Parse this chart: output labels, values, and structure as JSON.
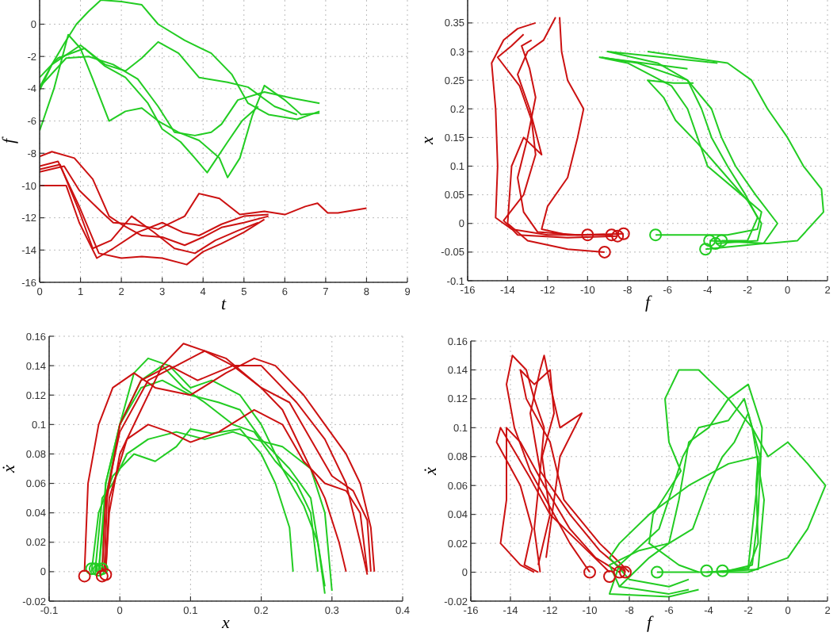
{
  "chart_data": [
    {
      "type": "line",
      "xlabel": "t",
      "ylabel": "f",
      "xlim": [
        0,
        9
      ],
      "ylim": [
        -16,
        1.5
      ],
      "xticks": [
        0,
        1,
        2,
        3,
        4,
        5,
        6,
        7,
        8,
        9
      ],
      "yticks": [
        -16,
        -14,
        -12,
        -10,
        -8,
        -6,
        -4,
        -2,
        0
      ],
      "grid": true,
      "line_style": "solid",
      "series": [
        {
          "color": "#22cc22",
          "x": [
            0,
            0.3,
            0.6,
            0.9,
            1.2,
            1.5,
            2.0,
            2.5,
            2.9,
            3.55,
            4.2,
            4.7,
            5.1,
            5.6,
            6.3,
            6.85
          ],
          "values": [
            -3.9,
            -2.5,
            -1.2,
            0,
            0.8,
            1.5,
            1.4,
            1.2,
            0,
            -1,
            -1.8,
            -3.1,
            -4.9,
            -5.6,
            -5.9,
            -5.4
          ]
        },
        {
          "color": "#22cc22",
          "x": [
            0,
            0.35,
            0.7,
            1.0,
            1.3,
            1.7,
            2.1,
            2.5,
            2.9,
            3.4,
            3.9,
            4.4,
            4.6,
            4.9,
            5.2,
            5.5,
            6.0,
            6.4,
            6.85
          ],
          "values": [
            -6.6,
            -4,
            -0.65,
            -1.5,
            -3.4,
            -6,
            -5.4,
            -5.2,
            -6,
            -6.7,
            -7.2,
            -8.3,
            -9.5,
            -8.3,
            -5.7,
            -3.8,
            -4.7,
            -5.6,
            -5.5
          ]
        },
        {
          "color": "#22cc22",
          "x": [
            0,
            0.3,
            1.0,
            1.6,
            2.1,
            2.5,
            2.9,
            3.4,
            3.9,
            4.6,
            5.1,
            5.75,
            6.3
          ],
          "values": [
            -4.1,
            -2.5,
            -1.3,
            -2.5,
            -2.9,
            -2.1,
            -1.1,
            -1.8,
            -3.3,
            -3.6,
            -3.9,
            -5.1,
            -5.6
          ]
        },
        {
          "color": "#22cc22",
          "x": [
            0,
            0.45,
            1.1,
            1.6,
            2.1,
            2.65,
            3.0,
            3.45,
            3.8,
            4.1,
            4.6,
            4.95,
            5.35
          ],
          "values": [
            -3.3,
            -2.1,
            -1.5,
            -2.6,
            -3.3,
            -4.9,
            -6.5,
            -7.3,
            -8.3,
            -9.2,
            -7.3,
            -6,
            -5.1
          ]
        },
        {
          "color": "#22cc22",
          "x": [
            0,
            0.65,
            1.2,
            1.8,
            2.4,
            2.9,
            3.3,
            3.8,
            4.2,
            4.45,
            4.85,
            5.5,
            6.2,
            6.85
          ],
          "values": [
            -3.9,
            -2.1,
            -2,
            -2.5,
            -3.4,
            -5.1,
            -6.7,
            -6.9,
            -6.7,
            -6.2,
            -4.7,
            -4.2,
            -4.6,
            -4.9
          ]
        },
        {
          "color": "#cc1111",
          "x": [
            0,
            0.65,
            0.97,
            1.4,
            1.8,
            2.4,
            3.0,
            3.5,
            3.9,
            4.45,
            5.0,
            5.6
          ],
          "values": [
            -10,
            -10,
            -12.3,
            -14.5,
            -13.9,
            -12.9,
            -12.3,
            -12.9,
            -13.1,
            -12.4,
            -11.9,
            -11.8
          ]
        },
        {
          "color": "#cc1111",
          "x": [
            0,
            0.6,
            0.97,
            1.5,
            1.8,
            2.3,
            2.9,
            3.55,
            3.9,
            4.4,
            4.9,
            5.5,
            6.0,
            6.5,
            6.8,
            7.05,
            7.3,
            8.0
          ],
          "values": [
            -9.15,
            -8.8,
            -10.3,
            -11.6,
            -12.3,
            -12.4,
            -12.7,
            -11.9,
            -10.5,
            -10.8,
            -11.8,
            -11.6,
            -11.8,
            -11.3,
            -11.1,
            -11.7,
            -11.7,
            -11.4
          ]
        },
        {
          "color": "#cc1111",
          "x": [
            0,
            0.3,
            0.85,
            1.3,
            1.7,
            2.0,
            2.5,
            3.0,
            3.55,
            4.0,
            4.45,
            5.0,
            5.6
          ],
          "values": [
            -8.2,
            -7.9,
            -8.3,
            -9.6,
            -11.9,
            -12.4,
            -13.1,
            -13.2,
            -13.7,
            -13.2,
            -12.6,
            -12.3,
            -11.9
          ]
        },
        {
          "color": "#cc1111",
          "x": [
            0,
            0.45,
            0.97,
            1.45,
            2.0,
            2.5,
            3.0,
            3.6,
            4.0,
            4.45,
            5.0,
            5.5
          ],
          "values": [
            -8.8,
            -8.5,
            -11.3,
            -14.2,
            -14.5,
            -14.4,
            -14.5,
            -14.9,
            -14.1,
            -13.6,
            -12.9,
            -12.1
          ]
        },
        {
          "color": "#cc1111",
          "x": [
            0,
            0.5,
            0.97,
            1.3,
            1.75,
            2.25,
            2.8,
            3.3,
            3.8,
            4.3,
            4.85,
            5.35
          ],
          "values": [
            -9,
            -8.7,
            -11.6,
            -13.9,
            -13.4,
            -11.9,
            -12.9,
            -13.9,
            -14.2,
            -13.4,
            -12.8,
            -12.3
          ]
        }
      ]
    },
    {
      "type": "line",
      "xlabel": "f",
      "ylabel": "x",
      "xlim": [
        -16,
        2
      ],
      "ylim": [
        -0.1,
        0.39
      ],
      "xticks": [
        -16,
        -14,
        -12,
        -10,
        -8,
        -6,
        -4,
        -2,
        0,
        2
      ],
      "yticks": [
        -0.1,
        -0.05,
        0,
        0.05,
        0.1,
        0.15,
        0.2,
        0.25,
        0.3,
        0.35
      ],
      "grid": true,
      "line_style": "solid",
      "series": [
        {
          "color": "#cc1111",
          "x": [
            -10,
            -12,
            -13.8,
            -14.6,
            -14.5,
            -14.6,
            -14.8,
            -14.2,
            -13.5,
            -12.6
          ],
          "values": [
            -0.02,
            -0.02,
            -0.01,
            0.01,
            0.1,
            0.2,
            0.28,
            0.32,
            0.34,
            0.35
          ]
        },
        {
          "color": "#cc1111",
          "x": [
            -9.15,
            -11,
            -13,
            -14,
            -13.8,
            -13.2,
            -12.3,
            -12.9,
            -13.5,
            -13,
            -12.2,
            -11.6
          ],
          "values": [
            -0.05,
            -0.045,
            -0.03,
            0,
            0.1,
            0.15,
            0.12,
            0.2,
            0.26,
            0.3,
            0.32,
            0.36
          ]
        },
        {
          "color": "#cc1111",
          "x": [
            -8.8,
            -11,
            -12.3,
            -12,
            -11,
            -10.5,
            -10.2,
            -11,
            -11.3,
            -11.4
          ],
          "values": [
            -0.02,
            -0.02,
            -0.01,
            0.03,
            0.08,
            0.15,
            0.2,
            0.25,
            0.3,
            0.36
          ]
        },
        {
          "color": "#cc1111",
          "x": [
            -8.2,
            -10.5,
            -12.5,
            -13.2,
            -13.5,
            -13,
            -12.6,
            -12.9,
            -13.3,
            -12.8
          ],
          "values": [
            -0.018,
            -0.02,
            -0.015,
            0.02,
            0.08,
            0.15,
            0.22,
            0.27,
            0.31,
            0.32
          ]
        },
        {
          "color": "#cc1111",
          "x": [
            -8.5,
            -11,
            -13.5,
            -14.2,
            -13.2,
            -12.6,
            -12.8,
            -13.4,
            -14.5,
            -13.8,
            -13.2
          ],
          "values": [
            -0.022,
            -0.025,
            -0.02,
            0.005,
            0.05,
            0.12,
            0.18,
            0.24,
            0.29,
            0.31,
            0.33
          ]
        },
        {
          "color": "#22cc22",
          "x": [
            -3.9,
            -1,
            0.5,
            1.8,
            1.7,
            0.8,
            0,
            -1,
            -1.8,
            -3,
            -5,
            -7
          ],
          "values": [
            -0.03,
            -0.035,
            -0.03,
            0.02,
            0.06,
            0.1,
            0.15,
            0.2,
            0.25,
            0.28,
            0.29,
            0.3
          ]
        },
        {
          "color": "#22cc22",
          "x": [
            -6.6,
            -3,
            -1.5,
            -1.3,
            -2.3,
            -4,
            -4.5,
            -5,
            -5.8,
            -8,
            -9.4,
            -5
          ],
          "values": [
            -0.02,
            -0.02,
            -0.01,
            0.02,
            0.05,
            0.1,
            0.15,
            0.2,
            0.24,
            0.28,
            0.29,
            0.27
          ]
        },
        {
          "color": "#22cc22",
          "x": [
            -3.3,
            -2,
            -1.5,
            -2.1,
            -3,
            -3.8,
            -4.3,
            -5,
            -6.5,
            -9,
            -3.5
          ],
          "values": [
            -0.03,
            -0.03,
            0.01,
            0.05,
            0.1,
            0.15,
            0.2,
            0.25,
            0.28,
            0.3,
            0.28
          ]
        },
        {
          "color": "#22cc22",
          "x": [
            -4.1,
            -1.2,
            -0.5,
            -1.6,
            -2.6,
            -3.3,
            -3.8,
            -5,
            -7.5,
            -9.3
          ],
          "values": [
            -0.045,
            -0.035,
            0,
            0.05,
            0.1,
            0.15,
            0.2,
            0.25,
            0.28,
            0.29
          ]
        },
        {
          "color": "#22cc22",
          "x": [
            -3.6,
            -1.5,
            -1.3,
            -2,
            -3.5,
            -4.5,
            -5.6,
            -6.2,
            -7,
            -5.7,
            -4.7
          ],
          "values": [
            -0.035,
            -0.03,
            0,
            0.04,
            0.1,
            0.14,
            0.18,
            0.22,
            0.25,
            0.245,
            0.245
          ]
        },
        {
          "type": "scatter",
          "marker": "circle",
          "color": "#cc1111",
          "x": [
            -10,
            -9.15,
            -8.8,
            -8.2,
            -8.5
          ],
          "values": [
            -0.02,
            -0.05,
            -0.02,
            -0.018,
            -0.022
          ]
        },
        {
          "type": "scatter",
          "marker": "circle",
          "color": "#22cc22",
          "x": [
            -6.6,
            -4.1,
            -3.9,
            -3.6,
            -3.3
          ],
          "values": [
            -0.02,
            -0.045,
            -0.03,
            -0.035,
            -0.03
          ]
        }
      ]
    },
    {
      "type": "line",
      "xlabel": "x",
      "ylabel": "ẋ",
      "xlim": [
        -0.1,
        0.4
      ],
      "ylim": [
        -0.02,
        0.16
      ],
      "xticks": [
        -0.1,
        0,
        0.1,
        0.2,
        0.3,
        0.4
      ],
      "yticks": [
        -0.02,
        0,
        0.02,
        0.04,
        0.06,
        0.08,
        0.1,
        0.12,
        0.14,
        0.16
      ],
      "grid": true,
      "line_style": "solid",
      "series": [
        {
          "color": "#22cc22",
          "x": [
            -0.03,
            -0.02,
            0,
            0.02,
            0.04,
            0.07,
            0.1,
            0.13,
            0.17,
            0.2,
            0.23,
            0.26,
            0.28,
            0.29
          ],
          "values": [
            0,
            0.06,
            0.1,
            0.135,
            0.145,
            0.14,
            0.125,
            0.13,
            0.12,
            0.1,
            0.07,
            0.045,
            0.02,
            -0.015
          ]
        },
        {
          "color": "#22cc22",
          "x": [
            -0.035,
            -0.025,
            -0.01,
            0.01,
            0.04,
            0.08,
            0.12,
            0.16,
            0.19,
            0.23,
            0.27,
            0.29,
            0.3
          ],
          "values": [
            0,
            0.05,
            0.06,
            0.08,
            0.09,
            0.095,
            0.09,
            0.095,
            0.09,
            0.085,
            0.07,
            0.04,
            -0.013
          ]
        },
        {
          "color": "#22cc22",
          "x": [
            -0.04,
            -0.03,
            -0.01,
            0.02,
            0.05,
            0.08,
            0.1,
            0.13,
            0.17,
            0.2,
            0.22,
            0.24,
            0.245
          ],
          "values": [
            0,
            0.04,
            0.065,
            0.08,
            0.075,
            0.085,
            0.097,
            0.094,
            0.097,
            0.08,
            0.06,
            0.03,
            0
          ]
        },
        {
          "color": "#22cc22",
          "x": [
            -0.03,
            -0.02,
            0,
            0.03,
            0.06,
            0.1,
            0.14,
            0.17,
            0.2,
            0.24,
            0.27,
            0.28,
            0.29
          ],
          "values": [
            0,
            0.05,
            0.1,
            0.125,
            0.13,
            0.12,
            0.115,
            0.11,
            0.09,
            0.07,
            0.05,
            0.02,
            -0.01
          ]
        },
        {
          "color": "#22cc22",
          "x": [
            -0.025,
            -0.02,
            0,
            0.03,
            0.06,
            0.09,
            0.12,
            0.16,
            0.19,
            0.22,
            0.25,
            0.27,
            0.28
          ],
          "values": [
            0,
            0.06,
            0.1,
            0.13,
            0.14,
            0.125,
            0.115,
            0.1,
            0.095,
            0.075,
            0.06,
            0.04,
            0
          ]
        },
        {
          "color": "#cc1111",
          "x": [
            -0.05,
            -0.045,
            -0.03,
            -0.01,
            0.02,
            0.05,
            0.1,
            0.15,
            0.19,
            0.22,
            0.26,
            0.29,
            0.32,
            0.34,
            0.355,
            0.36
          ],
          "values": [
            0,
            0.06,
            0.1,
            0.125,
            0.135,
            0.125,
            0.12,
            0.135,
            0.145,
            0.14,
            0.12,
            0.1,
            0.08,
            0.06,
            0.03,
            0
          ]
        },
        {
          "color": "#cc1111",
          "x": [
            -0.02,
            -0.015,
            0,
            0.03,
            0.06,
            0.09,
            0.12,
            0.16,
            0.2,
            0.23,
            0.26,
            0.29,
            0.31,
            0.32
          ],
          "values": [
            0,
            0.04,
            0.08,
            0.11,
            0.14,
            0.155,
            0.15,
            0.14,
            0.125,
            0.11,
            0.08,
            0.05,
            0.02,
            0
          ]
        },
        {
          "color": "#cc1111",
          "x": [
            -0.02,
            -0.015,
            0.01,
            0.04,
            0.07,
            0.1,
            0.14,
            0.19,
            0.23,
            0.26,
            0.29,
            0.32,
            0.34,
            0.35
          ],
          "values": [
            0,
            0.05,
            0.09,
            0.1,
            0.095,
            0.088,
            0.095,
            0.11,
            0.1,
            0.075,
            0.06,
            0.055,
            0.04,
            0
          ]
        },
        {
          "color": "#cc1111",
          "x": [
            -0.025,
            -0.02,
            0,
            0.04,
            0.08,
            0.12,
            0.15,
            0.2,
            0.24,
            0.27,
            0.3,
            0.33,
            0.35,
            0.355
          ],
          "values": [
            0,
            0.05,
            0.095,
            0.13,
            0.14,
            0.15,
            0.145,
            0.125,
            0.115,
            0.09,
            0.065,
            0.055,
            0.035,
            0
          ]
        },
        {
          "color": "#cc1111",
          "x": [
            -0.022,
            -0.018,
            0,
            0.03,
            0.07,
            0.11,
            0.16,
            0.2,
            0.25,
            0.29,
            0.32,
            0.34,
            0.35
          ],
          "values": [
            0,
            0.05,
            0.1,
            0.13,
            0.14,
            0.13,
            0.14,
            0.14,
            0.115,
            0.09,
            0.06,
            0.02,
            -0.002
          ]
        },
        {
          "type": "scatter",
          "marker": "circle",
          "color": "#22cc22",
          "x": [
            -0.04,
            -0.035,
            -0.03,
            -0.025
          ],
          "values": [
            0.002,
            0.002,
            0.001,
            0.002
          ]
        },
        {
          "type": "scatter",
          "marker": "circle",
          "color": "#cc1111",
          "x": [
            -0.05,
            -0.025,
            -0.02
          ],
          "values": [
            -0.003,
            -0.003,
            -0.002
          ]
        }
      ]
    },
    {
      "type": "line",
      "xlabel": "f",
      "ylabel": "ẋ",
      "xlim": [
        -16,
        2
      ],
      "ylim": [
        -0.02,
        0.16
      ],
      "xticks": [
        -16,
        -14,
        -12,
        -10,
        -8,
        -6,
        -4,
        -2,
        0,
        2
      ],
      "yticks": [
        -0.02,
        0,
        0.02,
        0.04,
        0.06,
        0.08,
        0.1,
        0.12,
        0.14,
        0.16
      ],
      "grid": true,
      "line_style": "solid",
      "series": [
        {
          "color": "#cc1111",
          "x": [
            -10,
            -11,
            -12,
            -13,
            -13.8,
            -14.2,
            -13.9,
            -13.2,
            -12.8,
            -12.3,
            -12.5,
            -12.8,
            -12.5
          ],
          "values": [
            0,
            0.02,
            0.045,
            0.07,
            0.1,
            0.13,
            0.15,
            0.14,
            0.12,
            0.1,
            0.07,
            0.03,
            0
          ]
        },
        {
          "color": "#cc1111",
          "x": [
            -9,
            -10.5,
            -12,
            -13,
            -14.5,
            -14.7,
            -13.5,
            -12.9,
            -13.3,
            -12.6
          ],
          "values": [
            0,
            0.02,
            0.04,
            0.065,
            0.1,
            0.09,
            0.06,
            0.03,
            0.005,
            0
          ]
        },
        {
          "color": "#cc1111",
          "x": [
            -8.2,
            -9.5,
            -11,
            -12.5,
            -13,
            -12.5,
            -12.3,
            -12,
            -11.5,
            -10.4,
            -11.5,
            -11.8,
            -12.2
          ],
          "values": [
            0,
            0.015,
            0.04,
            0.07,
            0.11,
            0.14,
            0.15,
            0.13,
            0.1,
            0.11,
            0.08,
            0.05,
            0.01
          ]
        },
        {
          "color": "#cc1111",
          "x": [
            -8.5,
            -9.7,
            -11,
            -12.3,
            -13.5,
            -14.2,
            -14.2,
            -14.5,
            -13.5,
            -12.8
          ],
          "values": [
            0,
            0.01,
            0.03,
            0.06,
            0.09,
            0.1,
            0.05,
            0.02,
            0.005,
            0
          ]
        },
        {
          "color": "#cc1111",
          "x": [
            -8,
            -9.5,
            -11.3,
            -12,
            -13.2,
            -13.5,
            -12.8,
            -12,
            -11.8,
            -12.4,
            -12,
            -12.6
          ],
          "values": [
            0,
            0.02,
            0.05,
            0.09,
            0.12,
            0.14,
            0.13,
            0.14,
            0.11,
            0.08,
            0.04,
            0.005
          ]
        },
        {
          "color": "#22cc22",
          "x": [
            -3.9,
            -2,
            0,
            1,
            1.9,
            1,
            0,
            -1,
            -1.8,
            -3,
            -4.5,
            -5.5,
            -6.2,
            -6,
            -5.4,
            -6.8,
            -7,
            -5.5,
            -4.5
          ],
          "values": [
            0,
            0,
            0.01,
            0.03,
            0.06,
            0.075,
            0.09,
            0.08,
            0.1,
            0.12,
            0.14,
            0.14,
            0.12,
            0.09,
            0.07,
            0.04,
            0.02,
            0.005,
            0
          ]
        },
        {
          "color": "#22cc22",
          "x": [
            -6.6,
            -4,
            -2,
            -1.5,
            -1.6,
            -1.5,
            -3,
            -5,
            -7,
            -8.5,
            -9,
            -8,
            -6,
            -5
          ],
          "values": [
            0,
            0,
            0.002,
            0.02,
            0.06,
            0.08,
            0.075,
            0.06,
            0.04,
            0.02,
            0.01,
            -0.005,
            -0.01,
            -0.005
          ]
        },
        {
          "color": "#22cc22",
          "x": [
            -3.3,
            -1.8,
            -1.5,
            -1.3,
            -2,
            -3,
            -4,
            -5,
            -5.5,
            -6,
            -7,
            -8.5,
            -6,
            -5
          ],
          "values": [
            0,
            0.005,
            0.04,
            0.1,
            0.13,
            0.12,
            0.1,
            0.09,
            0.05,
            0.02,
            0.01,
            -0.01,
            -0.015,
            -0.012
          ]
        },
        {
          "color": "#22cc22",
          "x": [
            -4.1,
            -1.5,
            -1.2,
            -1.8,
            -2.2,
            -3,
            -4.5,
            -5.3,
            -6.5,
            -8.5,
            -9,
            -6,
            -4.5
          ],
          "values": [
            0,
            0.002,
            0.05,
            0.1,
            0.12,
            0.105,
            0.1,
            0.08,
            0.03,
            0.005,
            -0.015,
            -0.017,
            -0.012
          ]
        },
        {
          "color": "#22cc22",
          "x": [
            -3.6,
            -2,
            -1.4,
            -2,
            -2.7,
            -3.3,
            -4,
            -4.8,
            -6,
            -7.5,
            -9,
            -8.5
          ],
          "values": [
            0,
            0.003,
            0.08,
            0.11,
            0.09,
            0.08,
            0.06,
            0.03,
            0.02,
            0.015,
            0.005,
            -0.01
          ]
        },
        {
          "type": "scatter",
          "marker": "circle",
          "color": "#cc1111",
          "x": [
            -10,
            -9,
            -8.5,
            -8.2
          ],
          "values": [
            0,
            -0.003,
            0,
            0
          ]
        },
        {
          "type": "scatter",
          "marker": "circle",
          "color": "#22cc22",
          "x": [
            -6.6,
            -4.1,
            -3.3
          ],
          "values": [
            0,
            0.001,
            0.001
          ]
        }
      ]
    }
  ]
}
